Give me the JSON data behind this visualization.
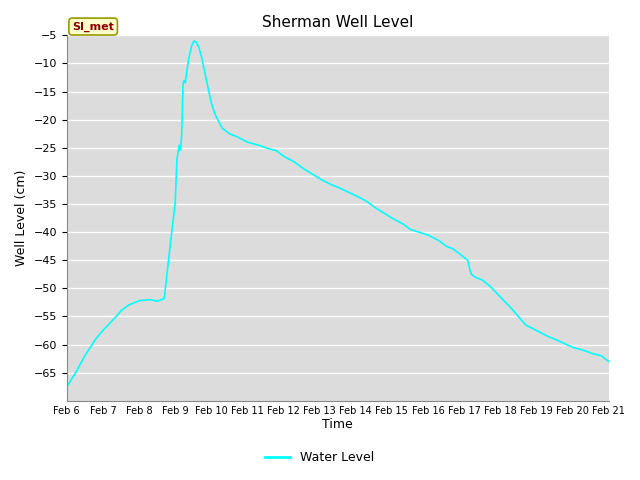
{
  "title": "Sherman Well Level",
  "xlabel": "Time",
  "ylabel": "Well Level (cm)",
  "ylim": [
    -70,
    -5
  ],
  "yticks": [
    -65,
    -60,
    -55,
    -50,
    -45,
    -40,
    -35,
    -30,
    -25,
    -20,
    -15,
    -10,
    -5
  ],
  "line_color": "#00FFFF",
  "line_width": 1.2,
  "background_color": "#FFFFFF",
  "plot_bg_color": "#DCDCDC",
  "grid_color": "#FFFFFF",
  "legend_label": "Water Level",
  "annotation_text": "SI_met",
  "annotation_box_facecolor": "#FFFFCC",
  "annotation_box_edgecolor": "#999900",
  "annotation_text_color": "#8B0000",
  "x_labels": [
    "Feb 6",
    "Feb 7",
    "Feb 8",
    "Feb 9",
    "Feb 10",
    "Feb 11",
    "Feb 12",
    "Feb 13",
    "Feb 14",
    "Feb 15",
    "Feb 16",
    "Feb 17",
    "Feb 18",
    "Feb 19",
    "Feb 20",
    "Feb 21"
  ],
  "keypoints": [
    [
      0.0,
      -67.5
    ],
    [
      0.2,
      -65.5
    ],
    [
      0.5,
      -62
    ],
    [
      0.8,
      -59
    ],
    [
      1.0,
      -57.5
    ],
    [
      1.3,
      -55.5
    ],
    [
      1.5,
      -54
    ],
    [
      1.7,
      -53
    ],
    [
      2.0,
      -52.2
    ],
    [
      2.3,
      -52
    ],
    [
      2.5,
      -52.3
    ],
    [
      2.7,
      -51.8
    ],
    [
      2.85,
      -43
    ],
    [
      3.0,
      -35
    ],
    [
      3.05,
      -27
    ],
    [
      3.1,
      -25
    ],
    [
      3.12,
      -24.5
    ],
    [
      3.15,
      -25.5
    ],
    [
      3.18,
      -23
    ],
    [
      3.22,
      -13.5
    ],
    [
      3.25,
      -13
    ],
    [
      3.28,
      -13.5
    ],
    [
      3.32,
      -11.5
    ],
    [
      3.38,
      -9
    ],
    [
      3.45,
      -7
    ],
    [
      3.52,
      -6
    ],
    [
      3.58,
      -6.2
    ],
    [
      3.65,
      -7
    ],
    [
      3.72,
      -8.5
    ],
    [
      3.8,
      -11
    ],
    [
      3.9,
      -14
    ],
    [
      4.0,
      -17
    ],
    [
      4.1,
      -19
    ],
    [
      4.3,
      -21.5
    ],
    [
      4.5,
      -22.5
    ],
    [
      4.7,
      -23
    ],
    [
      5.0,
      -24
    ],
    [
      5.3,
      -24.5
    ],
    [
      5.5,
      -25
    ],
    [
      5.8,
      -25.5
    ],
    [
      6.0,
      -26.5
    ],
    [
      6.3,
      -27.5
    ],
    [
      6.5,
      -28.5
    ],
    [
      7.0,
      -30.5
    ],
    [
      7.3,
      -31.5
    ],
    [
      7.5,
      -32
    ],
    [
      8.0,
      -33.5
    ],
    [
      8.3,
      -34.5
    ],
    [
      8.5,
      -35.5
    ],
    [
      9.0,
      -37.5
    ],
    [
      9.3,
      -38.5
    ],
    [
      9.5,
      -39.5
    ],
    [
      10.0,
      -40.5
    ],
    [
      10.3,
      -41.5
    ],
    [
      10.5,
      -42.5
    ],
    [
      10.7,
      -43
    ],
    [
      11.0,
      -44.5
    ],
    [
      11.1,
      -45
    ],
    [
      11.15,
      -46.5
    ],
    [
      11.2,
      -47.5
    ],
    [
      11.3,
      -48
    ],
    [
      11.5,
      -48.5
    ],
    [
      11.7,
      -49.5
    ],
    [
      12.0,
      -51.5
    ],
    [
      12.3,
      -53.5
    ],
    [
      12.5,
      -55
    ],
    [
      12.7,
      -56.5
    ],
    [
      13.0,
      -57.5
    ],
    [
      13.3,
      -58.5
    ],
    [
      13.5,
      -59
    ],
    [
      14.0,
      -60.5
    ],
    [
      14.3,
      -61
    ],
    [
      14.5,
      -61.5
    ],
    [
      14.8,
      -62
    ],
    [
      15.0,
      -63
    ]
  ]
}
